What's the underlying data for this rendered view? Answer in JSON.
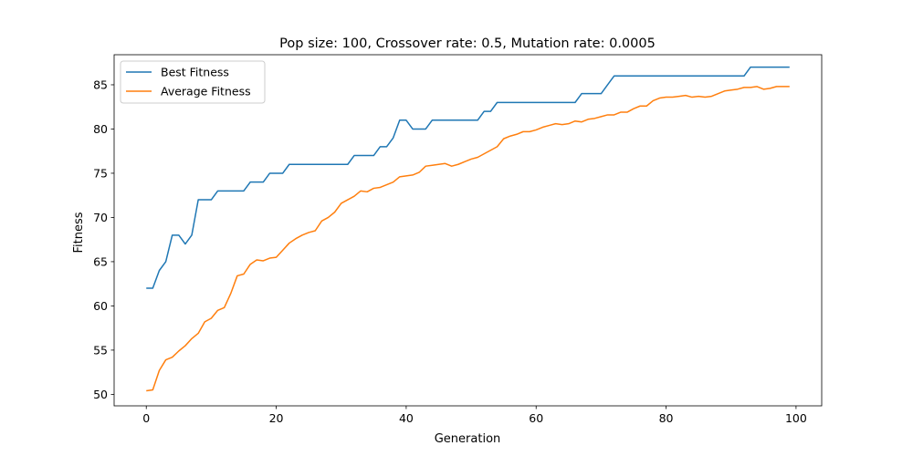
{
  "chart_data": {
    "type": "line",
    "title": "Pop size: 100, Crossover rate: 0.5, Mutation rate: 0.0005",
    "xlabel": "Generation",
    "ylabel": "Fitness",
    "xlim": [
      -4.95,
      103.95
    ],
    "ylim": [
      48.7,
      88.4
    ],
    "xticks": [
      0,
      20,
      40,
      60,
      80,
      100
    ],
    "yticks": [
      50,
      55,
      60,
      65,
      70,
      75,
      80,
      85
    ],
    "grid": false,
    "legend_position": "top-left",
    "x": [
      0,
      1,
      2,
      3,
      4,
      5,
      6,
      7,
      8,
      9,
      10,
      11,
      12,
      13,
      14,
      15,
      16,
      17,
      18,
      19,
      20,
      21,
      22,
      23,
      24,
      25,
      26,
      27,
      28,
      29,
      30,
      31,
      32,
      33,
      34,
      35,
      36,
      37,
      38,
      39,
      40,
      41,
      42,
      43,
      44,
      45,
      46,
      47,
      48,
      49,
      50,
      51,
      52,
      53,
      54,
      55,
      56,
      57,
      58,
      59,
      60,
      61,
      62,
      63,
      64,
      65,
      66,
      67,
      68,
      69,
      70,
      71,
      72,
      73,
      74,
      75,
      76,
      77,
      78,
      79,
      80,
      81,
      82,
      83,
      84,
      85,
      86,
      87,
      88,
      89,
      90,
      91,
      92,
      93,
      94,
      95,
      96,
      97,
      98,
      99
    ],
    "series": [
      {
        "name": "Best Fitness",
        "color": "#1f77b4",
        "values": [
          62,
          62,
          64,
          65,
          68,
          68,
          67,
          68,
          72,
          72,
          72,
          73,
          73,
          73,
          73,
          73,
          74,
          74,
          74,
          75,
          75,
          75,
          76,
          76,
          76,
          76,
          76,
          76,
          76,
          76,
          76,
          76,
          77,
          77,
          77,
          77,
          78,
          78,
          79,
          81,
          81,
          80,
          80,
          80,
          81,
          81,
          81,
          81,
          81,
          81,
          81,
          81,
          82,
          82,
          83,
          83,
          83,
          83,
          83,
          83,
          83,
          83,
          83,
          83,
          83,
          83,
          83,
          84,
          84,
          84,
          84,
          85,
          86,
          86,
          86,
          86,
          86,
          86,
          86,
          86,
          86,
          86,
          86,
          86,
          86,
          86,
          86,
          86,
          86,
          86,
          86,
          86,
          86,
          87,
          87,
          87,
          87,
          87,
          87,
          87
        ]
      },
      {
        "name": "Average Fitness",
        "color": "#ff7f0e",
        "values": [
          50.4,
          50.5,
          52.7,
          53.9,
          54.2,
          54.9,
          55.5,
          56.3,
          56.9,
          58.2,
          58.6,
          59.5,
          59.8,
          61.4,
          63.4,
          63.6,
          64.7,
          65.2,
          65.1,
          65.4,
          65.5,
          66.3,
          67.1,
          67.6,
          68.0,
          68.3,
          68.5,
          69.6,
          70.0,
          70.6,
          71.6,
          72.0,
          72.4,
          73.0,
          72.9,
          73.3,
          73.4,
          73.7,
          74.0,
          74.6,
          74.7,
          74.8,
          75.1,
          75.8,
          75.9,
          76.0,
          76.1,
          75.8,
          76.0,
          76.3,
          76.6,
          76.8,
          77.2,
          77.6,
          78.0,
          78.9,
          79.2,
          79.4,
          79.7,
          79.7,
          79.9,
          80.2,
          80.4,
          80.6,
          80.5,
          80.6,
          80.9,
          80.8,
          81.1,
          81.2,
          81.4,
          81.6,
          81.6,
          81.9,
          81.9,
          82.3,
          82.6,
          82.6,
          83.2,
          83.5,
          83.6,
          83.6,
          83.7,
          83.8,
          83.6,
          83.7,
          83.6,
          83.7,
          84.0,
          84.3,
          84.4,
          84.5,
          84.7,
          84.7,
          84.8,
          84.5,
          84.6,
          84.8,
          84.8,
          84.8
        ]
      }
    ]
  }
}
